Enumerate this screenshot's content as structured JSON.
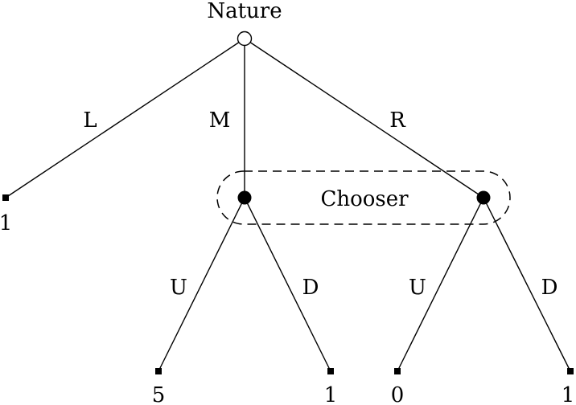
{
  "diagram": {
    "nodes": {
      "nature": {
        "label": "Nature"
      },
      "chooser": {
        "label": "Chooser"
      }
    },
    "edges": {
      "nature_L": "L",
      "nature_M": "M",
      "nature_R": "R",
      "chooser_left_U": "U",
      "chooser_left_D": "D",
      "chooser_right_U": "U",
      "chooser_right_D": "D"
    },
    "payoffs": {
      "L": "1",
      "M_U": "5",
      "M_D": "1",
      "R_U": "0",
      "R_D": "1"
    },
    "colors": {
      "line": "#000000",
      "background": "#ffffff"
    }
  }
}
